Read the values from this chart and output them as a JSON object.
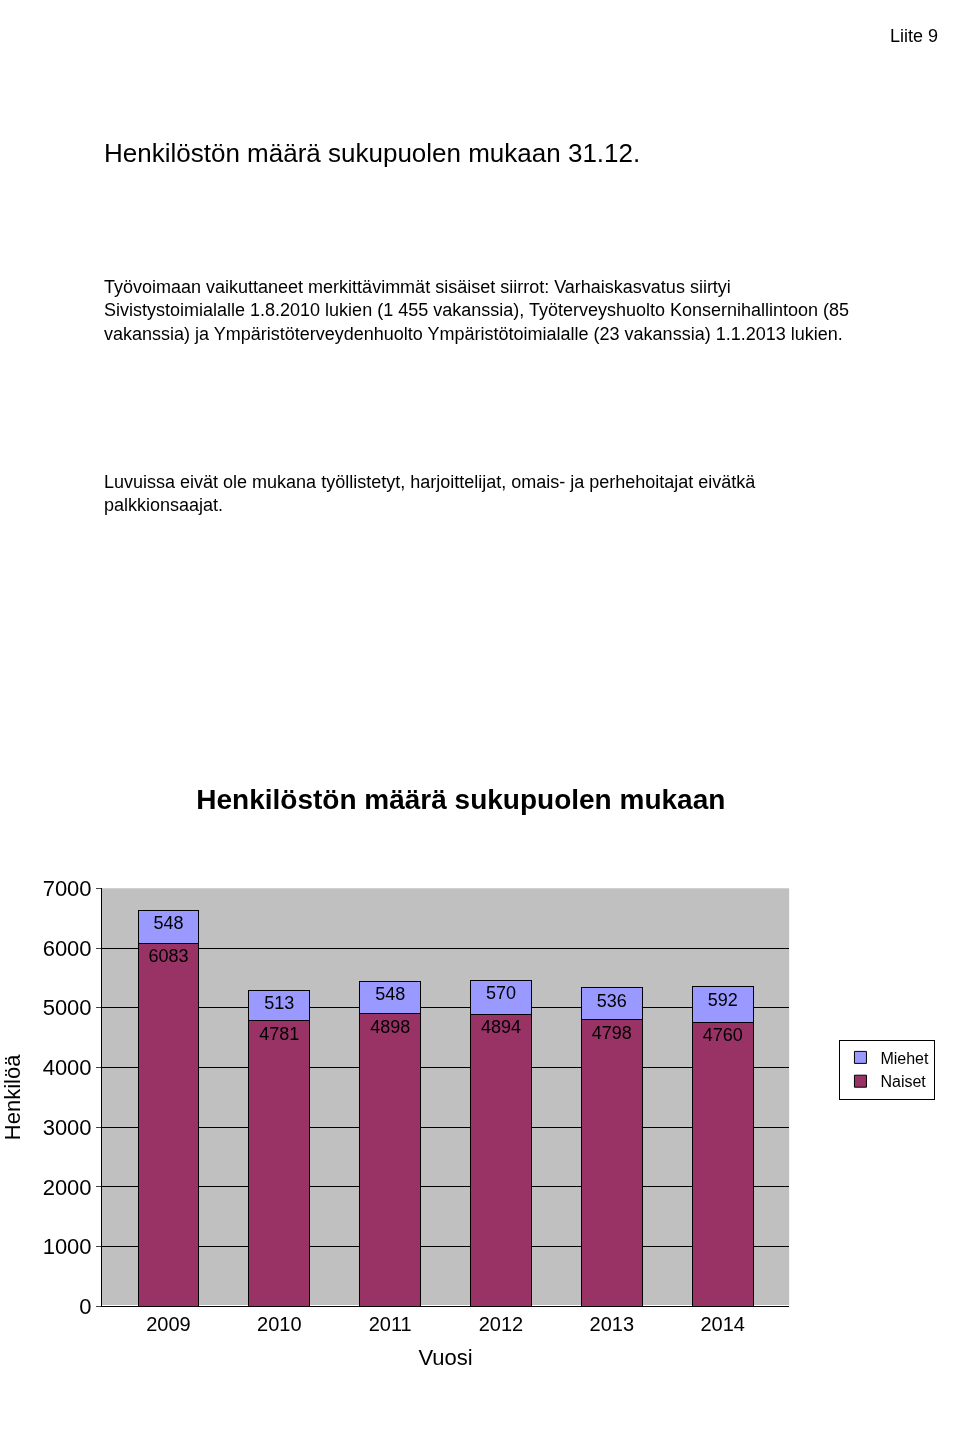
{
  "chart_data": {
    "type": "bar",
    "title": "Henkilöstön määrä sukupuolen mukaan",
    "xlabel": "Vuosi",
    "ylabel": "Henkilöä",
    "categories": [
      "2009",
      "2010",
      "2011",
      "2012",
      "2013",
      "2014"
    ],
    "series": [
      {
        "name": "Naiset",
        "color": "#993366",
        "values": [
          6083,
          4781,
          4898,
          4894,
          4798,
          4760
        ]
      },
      {
        "name": "Miehet",
        "color": "#9999ff",
        "values": [
          548,
          513,
          548,
          570,
          536,
          592
        ]
      }
    ],
    "stacked": true,
    "data_labels": true,
    "ylim": [
      0,
      7000
    ],
    "yticks": [
      0,
      1000,
      2000,
      3000,
      4000,
      5000,
      6000,
      7000
    ],
    "grid": "y",
    "legend": "right",
    "annotations": [
      "Liite 9",
      "Henkilöstön määrä sukupuolen mukaan 31.12.",
      "Työvoimaan vaikuttaneet merkittävimmät sisäiset siirrot: Varhaiskasvatus siirtyi Sivistystoimialalle 1.8.2010 lukien (1 455 vakanssia), Työterveyshuolto Konsernihallintoon (85 vakanssia) ja Ympäristöterveydenhuolto Ympäristötoimialalle (23 vakanssia) 1.1.2013 lukien.",
      "Luvuissa eivät ole mukana työllistetyt, harjoittelijat, omais- ja perhehoitajat eivätkä palkkionsaajat."
    ]
  }
}
